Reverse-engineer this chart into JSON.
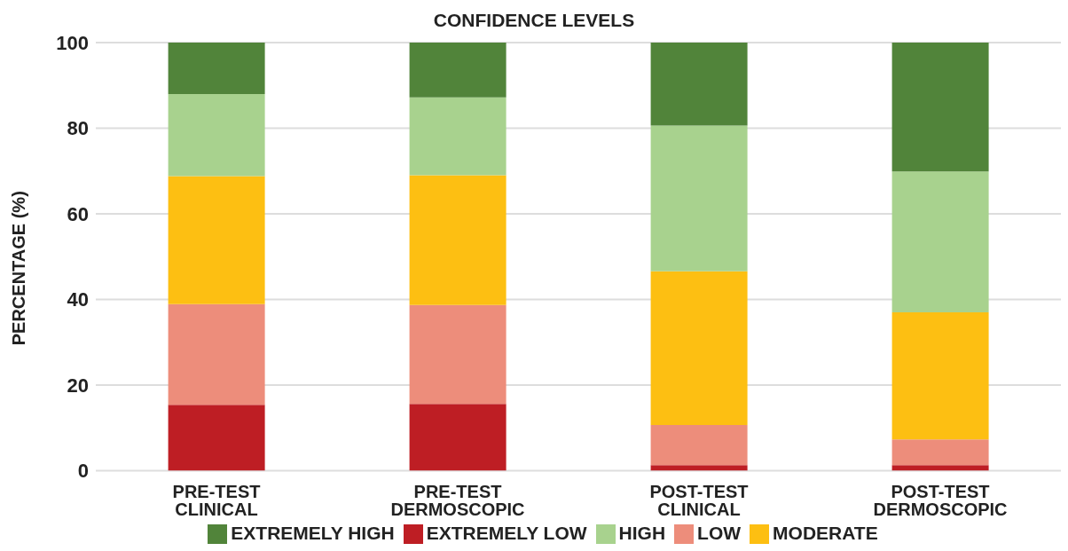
{
  "chart_data": {
    "type": "bar",
    "title": "CONFIDENCE LEVELS",
    "ylabel": "PERCENTAGE (%)",
    "categories": [
      "PRE-TEST CLINICAL",
      "PRE-TEST DERMOSCOPIC",
      "POST-TEST CLINICAL",
      "POST-TEST DERMOSCOPIC"
    ],
    "stacked": true,
    "series": [
      {
        "name": "EXTREMELY LOW",
        "color": "#be1e24",
        "values": [
          15.4,
          15.6,
          1.3,
          1.3
        ]
      },
      {
        "name": "LOW",
        "color": "#ed8d7b",
        "values": [
          23.5,
          23.1,
          9.4,
          6.0
        ]
      },
      {
        "name": "MODERATE",
        "color": "#fdbf12",
        "values": [
          29.9,
          30.3,
          35.9,
          29.7
        ]
      },
      {
        "name": "HIGH",
        "color": "#a8d28e",
        "values": [
          19.2,
          18.2,
          34.0,
          32.9
        ]
      },
      {
        "name": "EXTREMELY HIGH",
        "color": "#51843a",
        "values": [
          12.0,
          12.8,
          19.4,
          30.1
        ]
      }
    ],
    "ylim": [
      0,
      100
    ],
    "yticks": [
      0,
      20,
      40,
      60,
      80,
      100
    ],
    "grid": "y",
    "legend": "bottom"
  }
}
